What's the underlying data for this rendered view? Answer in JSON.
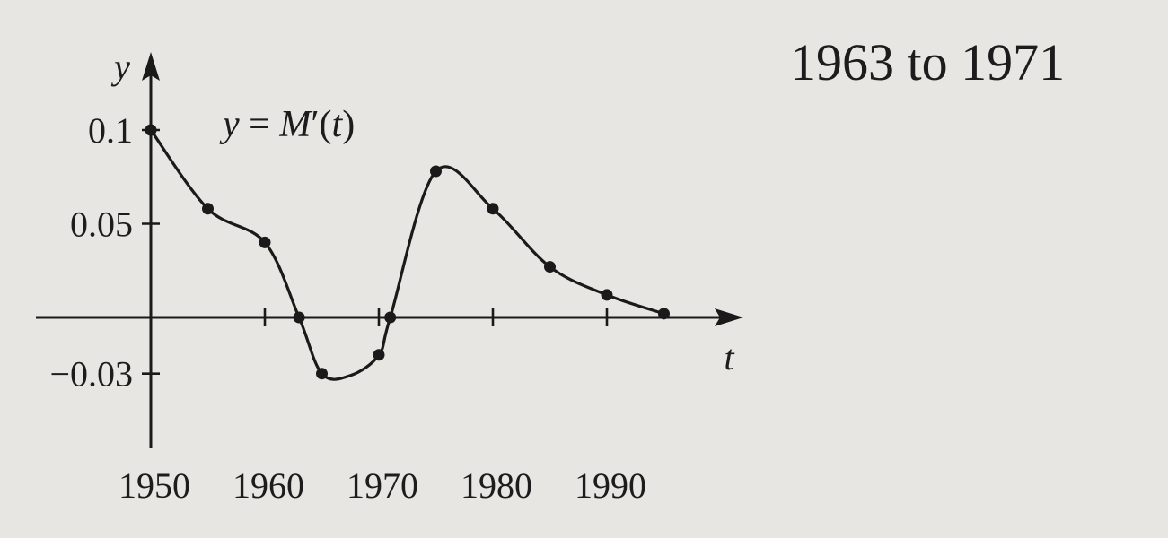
{
  "answer_text": "1963 to 1971",
  "chart_data": {
    "type": "line",
    "curve_label": "y = M′(t)",
    "xlabel": "t",
    "ylabel": "y",
    "x_ticks": [
      1950,
      1960,
      1970,
      1980,
      1990
    ],
    "x_tick_labels": [
      "1950",
      "1960",
      "1970",
      "1980",
      "1990"
    ],
    "y_ticks": [
      0.1,
      0.05,
      -0.03
    ],
    "y_tick_labels": [
      "0.1",
      "0.05",
      "−0.03"
    ],
    "xlim": [
      1950,
      1997
    ],
    "ylim": [
      -0.07,
      0.1
    ],
    "grid": false,
    "points": [
      {
        "x": 1950,
        "y": 0.1
      },
      {
        "x": 1955,
        "y": 0.058
      },
      {
        "x": 1960,
        "y": 0.04
      },
      {
        "x": 1963,
        "y": 0.0
      },
      {
        "x": 1965,
        "y": -0.03
      },
      {
        "x": 1970,
        "y": -0.02
      },
      {
        "x": 1971,
        "y": 0.0
      },
      {
        "x": 1975,
        "y": 0.078
      },
      {
        "x": 1980,
        "y": 0.058
      },
      {
        "x": 1985,
        "y": 0.027
      },
      {
        "x": 1990,
        "y": 0.012
      },
      {
        "x": 1995,
        "y": 0.002
      }
    ]
  }
}
